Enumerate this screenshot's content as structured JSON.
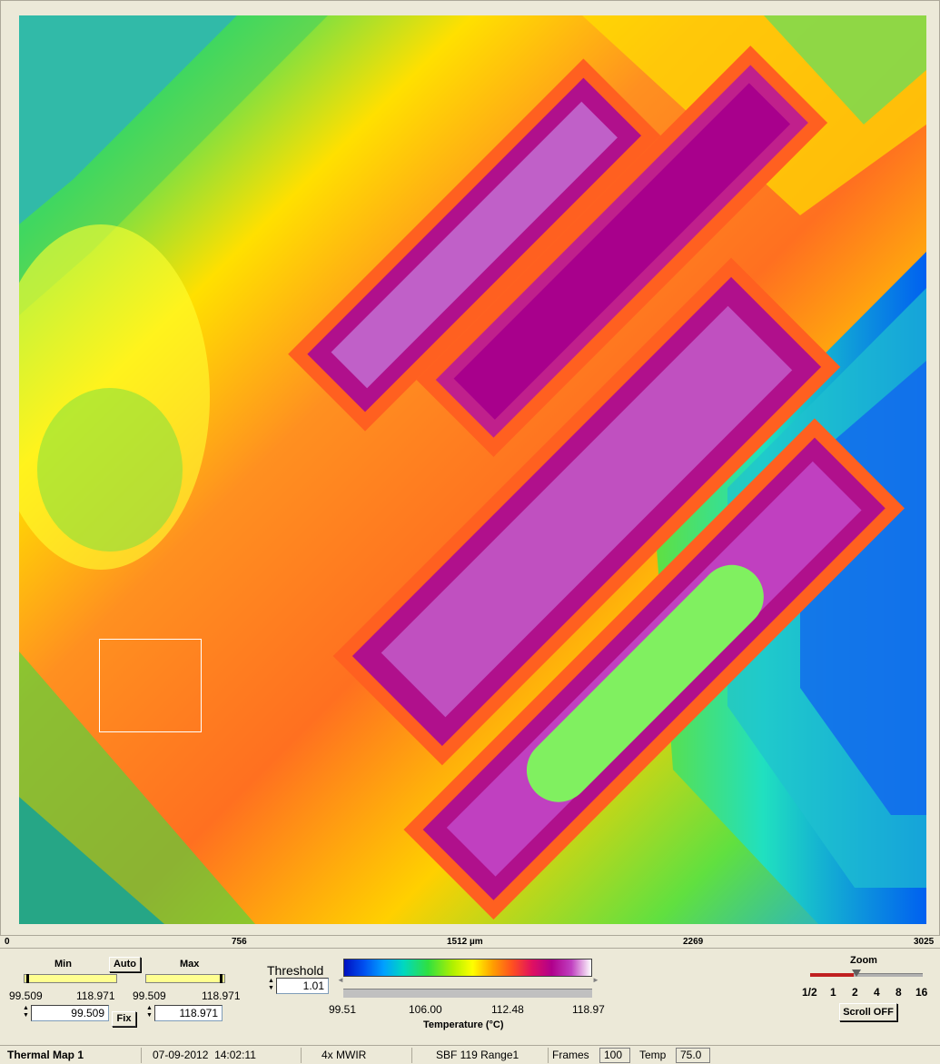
{
  "image": {
    "scale_ticks": [
      "0",
      "756",
      "1512 µm",
      "2269",
      "3025"
    ]
  },
  "range": {
    "min_label": "Min",
    "max_label": "Max",
    "auto_label": "Auto",
    "fix_label": "Fix",
    "min_low": "99.509",
    "min_high": "118.971",
    "max_low": "99.509",
    "max_high": "118.971",
    "min_value": "99.509",
    "max_value": "118.971"
  },
  "threshold": {
    "label": "Threshold",
    "value": "1.01"
  },
  "colorscale": {
    "ticks": [
      "99.51",
      "106.00",
      "112.48",
      "118.97"
    ],
    "title": "Temperature (°C)"
  },
  "zoom": {
    "label": "Zoom",
    "levels": [
      "1/2",
      "1",
      "2",
      "4",
      "8",
      "16"
    ],
    "selected": "2",
    "scroll_label": "Scroll OFF"
  },
  "status": {
    "map_name": "Thermal Map 1",
    "date": "07-09-2012",
    "time": "14:02:11",
    "objective": "4x MWIR",
    "calibration": "SBF 119 Range1",
    "frames_label": "Frames",
    "frames_value": "100",
    "temp_label": "Temp",
    "temp_value": "75.0"
  },
  "colors": {
    "hot": "#b0008c",
    "warm": "#ff8020",
    "mid": "#ffff00",
    "cool": "#30e040",
    "cold": "#0050f0"
  }
}
